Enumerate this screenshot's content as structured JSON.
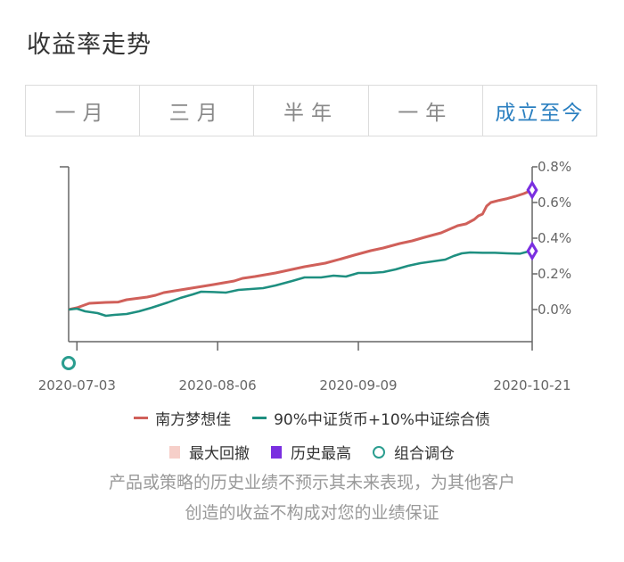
{
  "header": {
    "title": "收益率走势"
  },
  "tabs": [
    {
      "label": "一月",
      "active": false
    },
    {
      "label": "三月",
      "active": false
    },
    {
      "label": "半年",
      "active": false
    },
    {
      "label": "一年",
      "active": false
    },
    {
      "label": "成立至今",
      "active": true
    }
  ],
  "colors": {
    "fund": "#d0605a",
    "benchmark": "#1e8f80",
    "drawdown": "#f6cfc9",
    "high": "#7a2fe0",
    "rebalance": "#2a9d8f"
  },
  "chart_data": {
    "type": "line",
    "x_tick_labels": [
      "2020-07-03",
      "2020-08-06",
      "2020-09-09",
      "2020-10-21"
    ],
    "y_tick_labels": [
      "0.8%",
      "0.6%",
      "0.4%",
      "0.2%",
      "0.0%"
    ],
    "y_ticks": [
      0.8,
      0.6,
      0.4,
      0.2,
      0.0
    ],
    "ylim": [
      -0.18,
      0.8
    ],
    "x_range": [
      "2020-07-01",
      "2020-10-21"
    ],
    "grid": false,
    "legend_position": "bottom",
    "series": [
      {
        "name": "南方梦想佳",
        "color": "#d0605a",
        "points": [
          [
            "2020-07-01",
            0.0
          ],
          [
            "2020-07-03",
            0.01
          ],
          [
            "2020-07-06",
            0.035
          ],
          [
            "2020-07-10",
            0.04
          ],
          [
            "2020-07-13",
            0.042
          ],
          [
            "2020-07-15",
            0.055
          ],
          [
            "2020-07-20",
            0.07
          ],
          [
            "2020-07-22",
            0.08
          ],
          [
            "2020-07-24",
            0.095
          ],
          [
            "2020-07-28",
            0.11
          ],
          [
            "2020-08-01",
            0.125
          ],
          [
            "2020-08-05",
            0.14
          ],
          [
            "2020-08-10",
            0.16
          ],
          [
            "2020-08-12",
            0.175
          ],
          [
            "2020-08-15",
            0.185
          ],
          [
            "2020-08-20",
            0.205
          ],
          [
            "2020-08-22",
            0.215
          ],
          [
            "2020-08-27",
            0.24
          ],
          [
            "2020-09-01",
            0.26
          ],
          [
            "2020-09-05",
            0.285
          ],
          [
            "2020-09-08",
            0.305
          ],
          [
            "2020-09-12",
            0.33
          ],
          [
            "2020-09-15",
            0.345
          ],
          [
            "2020-09-19",
            0.37
          ],
          [
            "2020-09-22",
            0.385
          ],
          [
            "2020-09-25",
            0.405
          ],
          [
            "2020-09-29",
            0.43
          ],
          [
            "2020-10-01",
            0.45
          ],
          [
            "2020-10-03",
            0.47
          ],
          [
            "2020-10-05",
            0.48
          ],
          [
            "2020-10-07",
            0.505
          ],
          [
            "2020-10-08",
            0.525
          ],
          [
            "2020-10-09",
            0.535
          ],
          [
            "2020-10-10",
            0.58
          ],
          [
            "2020-10-11",
            0.6
          ],
          [
            "2020-10-13",
            0.612
          ],
          [
            "2020-10-15",
            0.622
          ],
          [
            "2020-10-17",
            0.635
          ],
          [
            "2020-10-19",
            0.65
          ],
          [
            "2020-10-21",
            0.67
          ]
        ]
      },
      {
        "name": "90%中证货币+10%中证综合债",
        "color": "#1e8f80",
        "points": [
          [
            "2020-07-01",
            0.0
          ],
          [
            "2020-07-03",
            0.005
          ],
          [
            "2020-07-05",
            -0.01
          ],
          [
            "2020-07-08",
            -0.02
          ],
          [
            "2020-07-10",
            -0.035
          ],
          [
            "2020-07-12",
            -0.03
          ],
          [
            "2020-07-15",
            -0.025
          ],
          [
            "2020-07-18",
            -0.01
          ],
          [
            "2020-07-21",
            0.01
          ],
          [
            "2020-07-25",
            0.04
          ],
          [
            "2020-07-28",
            0.065
          ],
          [
            "2020-07-31",
            0.085
          ],
          [
            "2020-08-02",
            0.1
          ],
          [
            "2020-08-05",
            0.098
          ],
          [
            "2020-08-08",
            0.095
          ],
          [
            "2020-08-11",
            0.11
          ],
          [
            "2020-08-14",
            0.115
          ],
          [
            "2020-08-17",
            0.12
          ],
          [
            "2020-08-20",
            0.135
          ],
          [
            "2020-08-24",
            0.16
          ],
          [
            "2020-08-27",
            0.18
          ],
          [
            "2020-08-31",
            0.18
          ],
          [
            "2020-09-03",
            0.19
          ],
          [
            "2020-09-06",
            0.185
          ],
          [
            "2020-09-09",
            0.205
          ],
          [
            "2020-09-12",
            0.205
          ],
          [
            "2020-09-15",
            0.21
          ],
          [
            "2020-09-18",
            0.225
          ],
          [
            "2020-09-21",
            0.245
          ],
          [
            "2020-09-24",
            0.26
          ],
          [
            "2020-09-27",
            0.27
          ],
          [
            "2020-09-30",
            0.28
          ],
          [
            "2020-10-02",
            0.3
          ],
          [
            "2020-10-04",
            0.315
          ],
          [
            "2020-10-06",
            0.32
          ],
          [
            "2020-10-09",
            0.318
          ],
          [
            "2020-10-12",
            0.318
          ],
          [
            "2020-10-15",
            0.315
          ],
          [
            "2020-10-18",
            0.313
          ],
          [
            "2020-10-20",
            0.325
          ],
          [
            "2020-10-21",
            0.328
          ]
        ]
      }
    ],
    "markers": [
      {
        "type": "history-high",
        "series": "南方梦想佳",
        "date": "2020-10-21",
        "value": 0.67
      },
      {
        "type": "history-high",
        "series": "90%中证货币+10%中证综合债",
        "date": "2020-10-21",
        "value": 0.328
      },
      {
        "type": "rebalance",
        "date": "2020-07-01"
      }
    ]
  },
  "legend": {
    "series": [
      {
        "label": "南方梦想佳",
        "color": "#d0605a"
      },
      {
        "label": "90%中证货币+10%中证综合债",
        "color": "#1e8f80"
      }
    ],
    "markers": [
      {
        "label": "最大回撤",
        "color": "#f6cfc9",
        "shape": "box"
      },
      {
        "label": "历史最高",
        "color": "#7a2fe0",
        "shape": "box"
      },
      {
        "label": "组合调仓",
        "color": "#2a9d8f",
        "shape": "circle"
      }
    ]
  },
  "disclaimer": {
    "line1": "产品或策略的历史业绩不预示其未来表现，为其他客户",
    "line2": "创造的收益不构成对您的业绩保证"
  }
}
